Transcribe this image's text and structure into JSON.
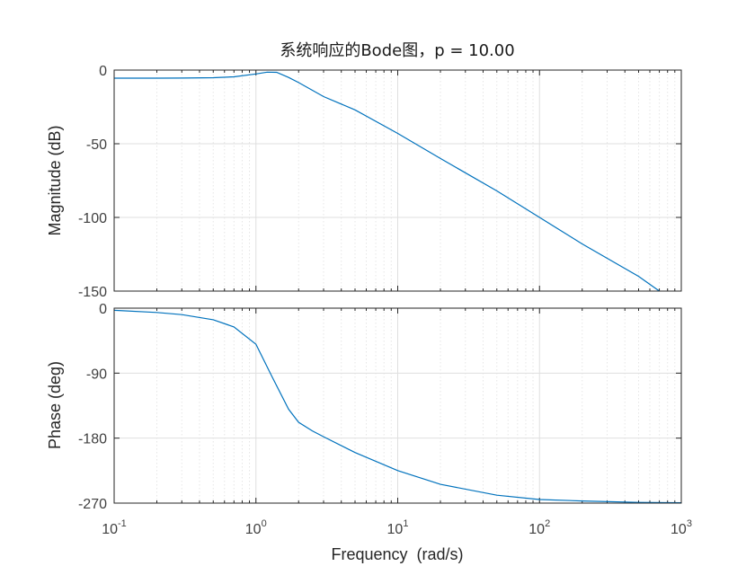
{
  "chart_data": [
    {
      "type": "line",
      "panel": "magnitude",
      "title": "系统响应的Bode图，p = 10.00",
      "xlabel": "",
      "ylabel": "Magnitude (dB)",
      "xscale": "log",
      "xlim": [
        0.1,
        1000
      ],
      "ylim": [
        -150,
        0
      ],
      "yticks": [
        0,
        -50,
        -100,
        -150
      ],
      "ytick_labels": [
        "0",
        "-50",
        "-100",
        "-150"
      ],
      "grid": true,
      "series": [
        {
          "color": "#0072bd",
          "x": [
            0.1,
            0.2,
            0.3,
            0.5,
            0.7,
            1.0,
            1.2,
            1.4,
            1.7,
            2.0,
            3.0,
            5.0,
            10,
            20,
            50,
            100,
            200,
            500,
            700
          ],
          "values": [
            -5.5,
            -5.5,
            -5.4,
            -5.2,
            -4.6,
            -2.6,
            -1.4,
            -1.5,
            -5.0,
            -8.5,
            -18,
            -27,
            -43,
            -60,
            -82,
            -100,
            -118,
            -140,
            -150
          ]
        }
      ]
    },
    {
      "type": "line",
      "panel": "phase",
      "xlabel": "Frequency  (rad/s)",
      "ylabel": "Phase (deg)",
      "xscale": "log",
      "xlim": [
        0.1,
        1000
      ],
      "ylim": [
        -270,
        0
      ],
      "xticks": [
        0.1,
        1,
        10,
        100,
        1000
      ],
      "xtick_labels": [
        {
          "base": "10",
          "exp": "-1"
        },
        {
          "base": "10",
          "exp": "0"
        },
        {
          "base": "10",
          "exp": "1"
        },
        {
          "base": "10",
          "exp": "2"
        },
        {
          "base": "10",
          "exp": "3"
        }
      ],
      "yticks": [
        0,
        -90,
        -180,
        -270
      ],
      "ytick_labels": [
        "0",
        "-90",
        "-180",
        "-270"
      ],
      "grid": true,
      "series": [
        {
          "color": "#0072bd",
          "x": [
            0.1,
            0.2,
            0.3,
            0.5,
            0.7,
            1.0,
            1.3,
            1.7,
            2.0,
            2.5,
            3.0,
            5.0,
            10,
            20,
            50,
            100,
            200,
            500,
            1000
          ],
          "values": [
            -3,
            -6,
            -9,
            -16,
            -26,
            -50,
            -95,
            -140,
            -158,
            -170,
            -178,
            -200,
            -225,
            -244,
            -259,
            -265,
            -267,
            -269,
            -269.5
          ]
        }
      ]
    }
  ]
}
